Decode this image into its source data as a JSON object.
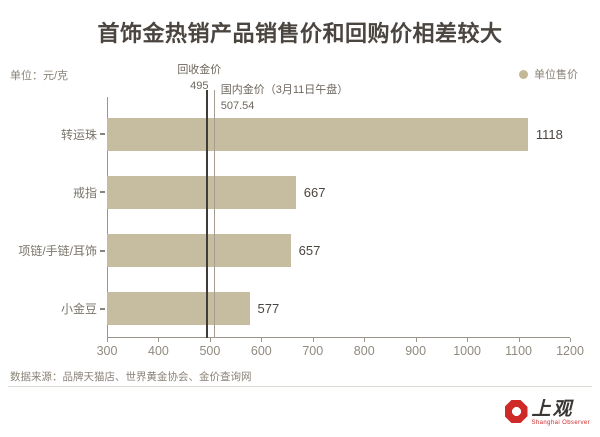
{
  "title": "首饰金热销产品销售价和回购价相差较大",
  "unit_label": "单位：元/克",
  "legend": {
    "label": "单位售价",
    "color": "#c2b896"
  },
  "chart_data": {
    "type": "bar",
    "orientation": "horizontal",
    "title": "首饰金热销产品销售价和回购价相差较大",
    "categories": [
      "转运珠",
      "戒指",
      "项链/手链/耳饰",
      "小金豆"
    ],
    "values": [
      1118,
      667,
      657,
      577
    ],
    "series_name": "单位售价",
    "xlim": [
      300,
      1200
    ],
    "x_ticks": [
      300,
      400,
      500,
      600,
      700,
      800,
      900,
      1000,
      1100,
      1200
    ],
    "grid": false,
    "legend_position": "top-right",
    "bar_color": "#c6bda0",
    "reference_lines": [
      {
        "name": "回收金价",
        "value": 495,
        "display": "495",
        "line": "dark"
      },
      {
        "name": "国内金价（3月11日午盘）",
        "value": 507.54,
        "display": "507.54",
        "line": "light"
      }
    ]
  },
  "source": "数据来源：品牌天猫店、世界黄金协会、金价查询网",
  "logo": {
    "name": "上观",
    "subtitle": "Shanghai Observer",
    "color": "#ce2a28"
  }
}
